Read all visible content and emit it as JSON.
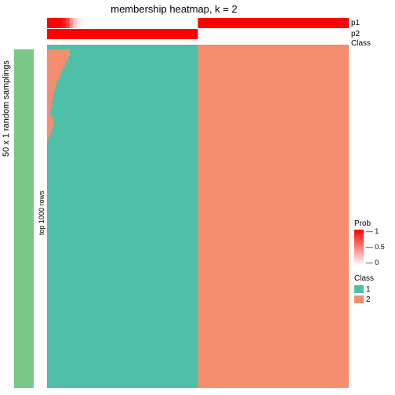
{
  "title": "membership heatmap, k = 2",
  "sidebar": {
    "samplings_label": "50 x 1 random samplings",
    "rows_label": "top 1000 rows",
    "color": "#7ac887"
  },
  "headers": {
    "p1": {
      "label": "p1",
      "colormap_low": "#ffffff",
      "colormap_high": "#ff0000",
      "values_left_to_right": [
        1.0,
        1.0,
        1.0,
        0.98,
        0.9,
        0.75,
        0.4,
        0.2,
        0.08,
        0.02,
        0.0,
        0.0,
        0.0,
        0.0,
        0.0,
        0.0,
        0.0,
        0.0,
        0.0,
        0.0,
        0.0,
        0.0,
        0.0,
        0.0,
        0.0,
        0.0,
        0.0,
        0.0,
        0.0,
        0.0,
        0.0,
        0.0,
        0.0,
        0.0,
        0.0,
        0.0,
        0.0,
        0.0,
        0.0,
        0.0,
        1.0,
        1.0,
        1.0,
        1.0,
        1.0,
        1.0,
        1.0,
        1.0,
        1.0,
        1.0,
        1.0,
        1.0,
        1.0,
        1.0,
        1.0,
        1.0,
        1.0,
        1.0,
        1.0,
        1.0,
        1.0,
        1.0,
        1.0,
        1.0,
        1.0,
        1.0,
        1.0,
        1.0,
        1.0,
        1.0,
        1.0,
        1.0,
        1.0,
        1.0,
        1.0,
        1.0,
        1.0,
        1.0,
        1.0,
        1.0
      ],
      "split_at": 0.5
    },
    "p2": {
      "label": "p2",
      "colormap_low": "#ffffff",
      "colormap_high": "#ff0000",
      "left_value": 1.0,
      "right_value": 0.0,
      "split_at": 0.5
    },
    "class": {
      "label": "Class",
      "left_color": "#4fbfa8",
      "right_color": "#f58e6e",
      "split_at": 0.5
    }
  },
  "heatmap": {
    "class1_color": "#4fbfa8",
    "class2_color": "#f58e6e",
    "column_split": 0.5,
    "class2_intrusion_left": {
      "rows_fraction_start": 0.0,
      "rows_fraction_end": 0.28,
      "boundary_x_fractions": [
        0.075,
        0.075,
        0.07,
        0.065,
        0.06,
        0.055,
        0.05,
        0.045,
        0.04,
        0.035,
        0.03,
        0.028,
        0.025,
        0.022,
        0.02,
        0.018,
        0.016,
        0.014,
        0.012,
        0.01,
        0.015,
        0.02,
        0.022,
        0.02,
        0.015,
        0.012,
        0.008,
        0.004,
        0.0
      ]
    }
  },
  "legend": {
    "prob": {
      "title": "Prob",
      "low_color": "#ffffff",
      "high_color": "#ff0000",
      "ticks": [
        {
          "value": "1",
          "pos": 0.0
        },
        {
          "value": "0.5",
          "pos": 0.5
        },
        {
          "value": "0",
          "pos": 1.0
        }
      ]
    },
    "class": {
      "title": "Class",
      "entries": [
        {
          "label": "1",
          "color": "#4fbfa8"
        },
        {
          "label": "2",
          "color": "#f58e6e"
        }
      ]
    }
  }
}
